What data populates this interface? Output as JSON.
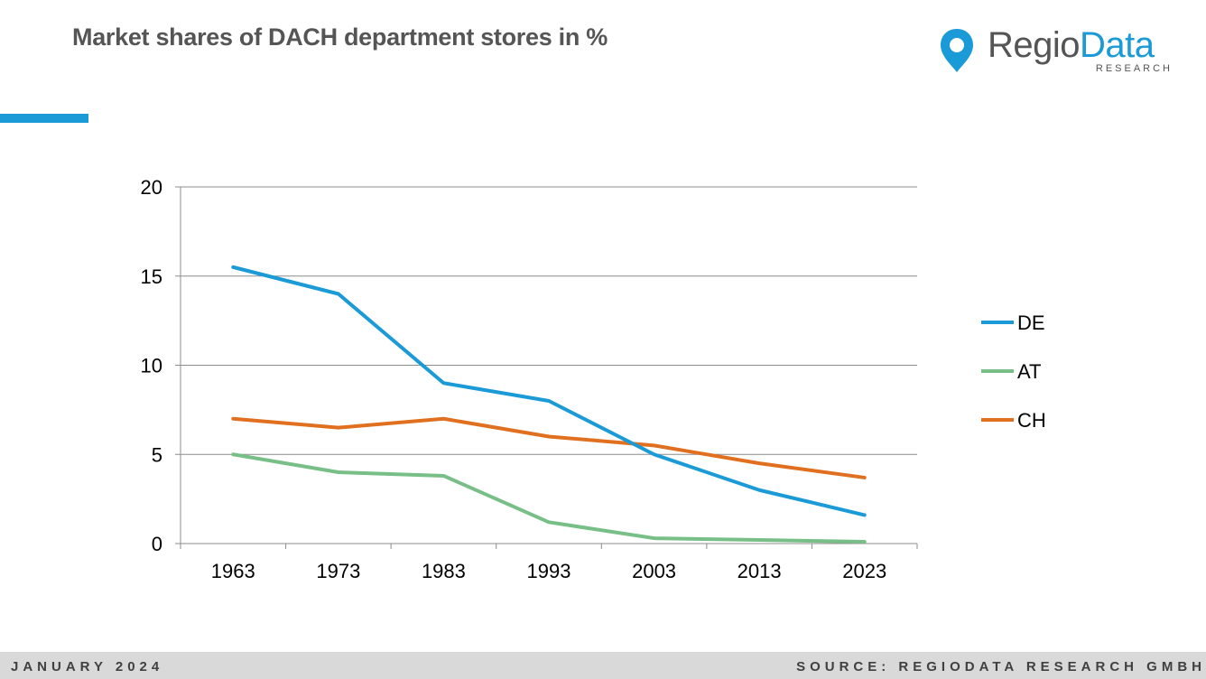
{
  "header": {
    "title": "Market shares of DACH department stores in %"
  },
  "logo": {
    "word_1": "Regio",
    "word_2": "Data",
    "subtitle": "RESEARCH",
    "icon": "location-pin-icon"
  },
  "colors": {
    "accent": "#1a9ad6",
    "de": "#1a9ad6",
    "at": "#77bf86",
    "ch": "#e07020"
  },
  "footer": {
    "date": "JANUARY 2024",
    "source": "SOURCE: REGIODATA RESEARCH GMBH"
  },
  "chart_data": {
    "type": "line",
    "title": "Market shares of DACH department stores in %",
    "xlabel": "",
    "ylabel": "",
    "x": [
      "1963",
      "1973",
      "1983",
      "1993",
      "2003",
      "2013",
      "2023"
    ],
    "y_ticks": [
      "0",
      "5",
      "10",
      "15",
      "20"
    ],
    "ylim": [
      0,
      20
    ],
    "grid": true,
    "legend_position": "right",
    "series": [
      {
        "name": "DE",
        "color": "#1a9ad6",
        "values": [
          15.5,
          14.0,
          9.0,
          8.0,
          5.0,
          3.0,
          1.6
        ]
      },
      {
        "name": "AT",
        "color": "#77bf86",
        "values": [
          5.0,
          4.0,
          3.8,
          1.2,
          0.3,
          0.2,
          0.1
        ]
      },
      {
        "name": "CH",
        "color": "#e07020",
        "values": [
          7.0,
          6.5,
          7.0,
          6.0,
          5.5,
          4.5,
          3.7
        ]
      }
    ]
  }
}
